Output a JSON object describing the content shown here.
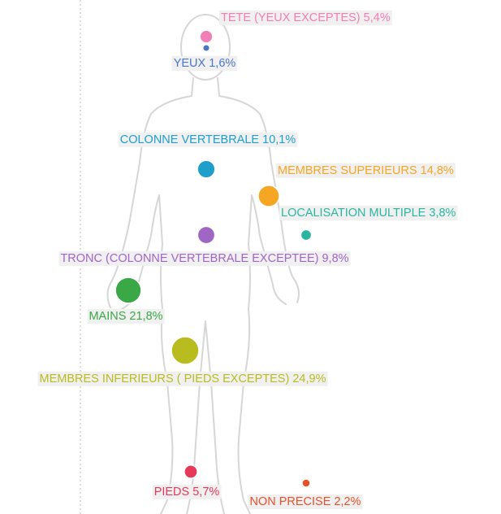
{
  "chart_data": {
    "type": "bubble",
    "categories": [
      "TETE (YEUX EXCEPTES)",
      "YEUX",
      "COLONNE VERTEBRALE",
      "MEMBRES SUPERIEURS",
      "LOCALISATION MULTIPLE",
      "TRONC (COLONNE VERTEBRALE EXCEPTEE)",
      "MAINS",
      "MEMBRES INFERIEURS ( PIEDS EXCEPTES)",
      "PIEDS",
      "NON PRECISE"
    ],
    "values": [
      5.4,
      1.6,
      10.1,
      14.8,
      3.8,
      9.8,
      21.8,
      24.9,
      5.7,
      2.2
    ],
    "value_labels": [
      "5,4%",
      "1,6%",
      "10,1%",
      "14,8%",
      "3,8%",
      "9,8%",
      "21,8%",
      "24,9%",
      "5,7%",
      "2,2%"
    ],
    "colors": [
      "#f07fb5",
      "#4a76c2",
      "#1f9ec9",
      "#f5a623",
      "#2bb5a0",
      "#a066c4",
      "#3aa846",
      "#b8bc1f",
      "#e8385a",
      "#e8502a"
    ]
  }
}
